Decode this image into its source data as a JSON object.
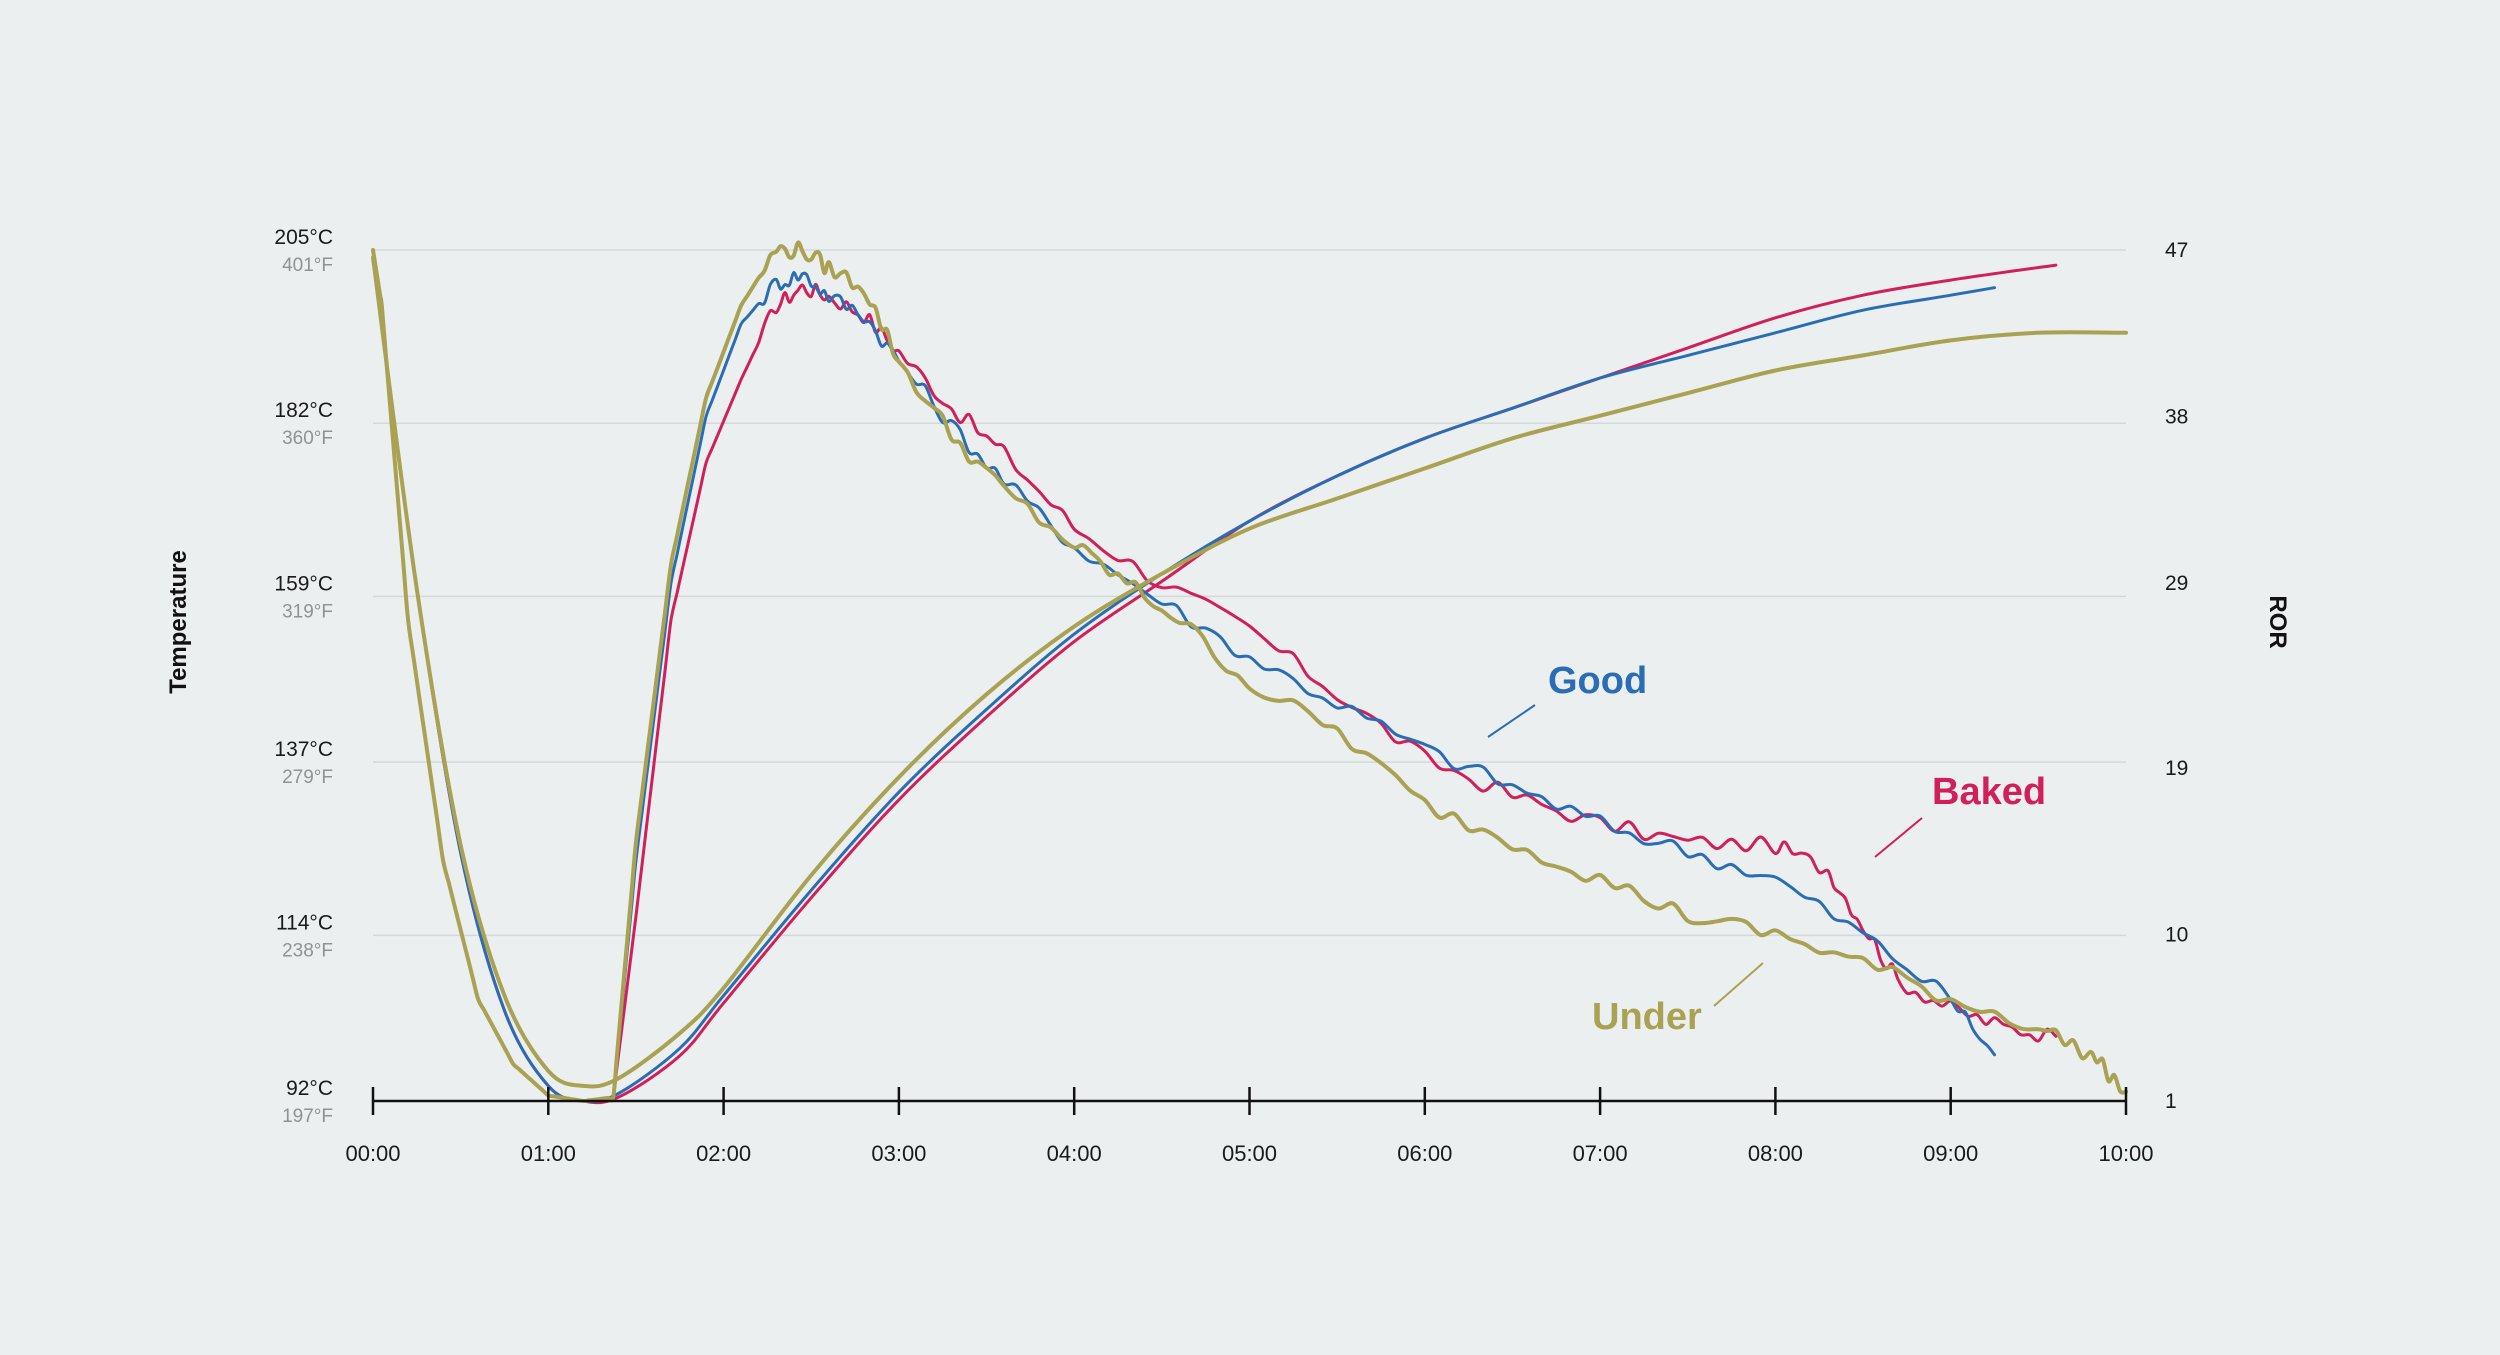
{
  "chart_data": {
    "type": "line",
    "title": "",
    "xlabel": "",
    "ylabel": "Temperature",
    "ylabel_right": "ROR",
    "xlim": [
      0,
      10
    ],
    "ylim": [
      92,
      205
    ],
    "ylim_right": [
      1,
      47
    ],
    "x_ticks": [
      "00:00",
      "01:00",
      "02:00",
      "03:00",
      "04:00",
      "05:00",
      "06:00",
      "07:00",
      "08:00",
      "09:00",
      "10:00"
    ],
    "y_ticks_left": [
      {
        "value": 205,
        "c": "205°C",
        "f": "401°F"
      },
      {
        "value": 182,
        "c": "182°C",
        "f": "360°F"
      },
      {
        "value": 159,
        "c": "159°C",
        "f": "319°F"
      },
      {
        "value": 137,
        "c": "137°C",
        "f": "279°F"
      },
      {
        "value": 114,
        "c": "114°C",
        "f": "238°F"
      },
      {
        "value": 92,
        "c": "92°C",
        "f": "197°F"
      }
    ],
    "y_ticks_right": [
      "47",
      "38",
      "29",
      "19",
      "10",
      "1"
    ],
    "y_ticks_right_values": [
      47,
      38,
      29,
      19,
      10,
      1
    ],
    "grid": true,
    "legend": "inline labels",
    "series": [
      {
        "name": "Good",
        "color": "#2a6db5",
        "bean_temp": {
          "x": [
            0,
            0.25,
            0.5,
            0.75,
            1.0,
            1.2,
            1.4,
            1.75,
            2.0,
            2.5,
            3.0,
            3.5,
            4.0,
            4.5,
            5.0,
            5.5,
            6.0,
            6.5,
            7.0,
            7.5,
            8.0,
            8.5,
            9.0,
            9.25
          ],
          "y": [
            204,
            160,
            125,
            104,
            94,
            92,
            93,
            99,
            106,
            120,
            133,
            144,
            154,
            162,
            169,
            175,
            180,
            184,
            188,
            191,
            194,
            197,
            199,
            200
          ]
        },
        "ror": {
          "x": [
            0,
            0.05,
            0.2,
            0.4,
            0.6,
            0.8,
            1.0,
            1.2,
            1.37,
            1.5,
            1.7,
            1.9,
            2.1,
            2.3,
            2.45,
            2.6,
            2.8,
            3.0,
            3.3,
            3.6,
            4.0,
            4.5,
            5.0,
            5.5,
            6.0,
            6.5,
            7.0,
            7.5,
            8.0,
            8.5,
            9.0,
            9.25
          ],
          "y": [
            47,
            44,
            27,
            14,
            6.5,
            3,
            1.3,
            1,
            1.2,
            14,
            29,
            38,
            43,
            45.2,
            45.7,
            44.5,
            43.5,
            41,
            37.5,
            34.5,
            31,
            28,
            25,
            22.5,
            20,
            18,
            16,
            14.5,
            13,
            10,
            6.5,
            3.5
          ]
        }
      },
      {
        "name": "Baked",
        "color": "#d11f5a",
        "bean_temp": {
          "x": [
            0,
            0.25,
            0.5,
            0.75,
            1.0,
            1.2,
            1.4,
            1.75,
            2.0,
            2.5,
            3.0,
            3.5,
            4.0,
            4.5,
            5.0,
            5.5,
            6.0,
            6.5,
            7.0,
            7.5,
            8.0,
            8.5,
            9.0,
            9.6
          ],
          "y": [
            204,
            160,
            125,
            104,
            94,
            92,
            92.5,
            98,
            105,
            119,
            132,
            143,
            153,
            161,
            169,
            175,
            180,
            184,
            188,
            192,
            196,
            199,
            201,
            203
          ]
        },
        "ror": {
          "x": [
            0,
            0.05,
            0.2,
            0.4,
            0.6,
            0.8,
            1.0,
            1.2,
            1.37,
            1.5,
            1.7,
            1.9,
            2.1,
            2.3,
            2.45,
            2.6,
            2.8,
            3.0,
            3.3,
            3.6,
            4.0,
            4.5,
            5.0,
            5.5,
            6.0,
            6.5,
            7.0,
            7.5,
            8.0,
            8.3,
            8.5,
            8.7,
            9.0,
            9.3,
            9.6
          ],
          "y": [
            47,
            44,
            27,
            14,
            6.5,
            3,
            1.3,
            1,
            1.2,
            11,
            27,
            35.5,
            40,
            44,
            45,
            44.5,
            43.5,
            41.5,
            38.5,
            36,
            32,
            29,
            26.5,
            23,
            19.5,
            17.5,
            16,
            15,
            14.8,
            13.5,
            10.5,
            7.5,
            6,
            5,
            4.5
          ]
        }
      },
      {
        "name": "Under",
        "color": "#a9a252",
        "bean_temp": {
          "x": [
            0,
            0.25,
            0.5,
            0.75,
            1.0,
            1.2,
            1.4,
            1.75,
            2.0,
            2.5,
            3.0,
            3.5,
            4.0,
            4.5,
            5.0,
            5.5,
            6.0,
            6.5,
            7.0,
            7.5,
            8.0,
            8.5,
            9.0,
            9.5,
            10.0
          ],
          "y": [
            204,
            160,
            126,
            106,
            96,
            94,
            95,
            101,
            107,
            122,
            135,
            146,
            155,
            162,
            168,
            172,
            176,
            180,
            183,
            186,
            189,
            191,
            193,
            194,
            194
          ]
        },
        "ror": {
          "x": [
            0,
            0.05,
            0.2,
            0.4,
            0.6,
            0.8,
            1.0,
            1.2,
            1.37,
            1.5,
            1.7,
            1.9,
            2.1,
            2.3,
            2.45,
            2.6,
            2.8,
            3.0,
            3.3,
            3.6,
            4.0,
            4.3,
            4.6,
            5.0,
            5.5,
            6.0,
            6.5,
            7.0,
            7.5,
            8.0,
            8.5,
            9.0,
            9.5,
            9.8,
            10.0
          ],
          "y": [
            47,
            44,
            27,
            14,
            6.5,
            3,
            1.3,
            1,
            1.2,
            15,
            30,
            39,
            44,
            47,
            47,
            46,
            45,
            41,
            37,
            34,
            31,
            29,
            27,
            23.5,
            21,
            17,
            15,
            13,
            11,
            10,
            8.5,
            6.5,
            5,
            3.5,
            1.5
          ]
        }
      }
    ],
    "annotations": [
      {
        "text": "Good",
        "series": "Good"
      },
      {
        "text": "Baked",
        "series": "Baked"
      },
      {
        "text": "Under",
        "series": "Under"
      }
    ]
  }
}
